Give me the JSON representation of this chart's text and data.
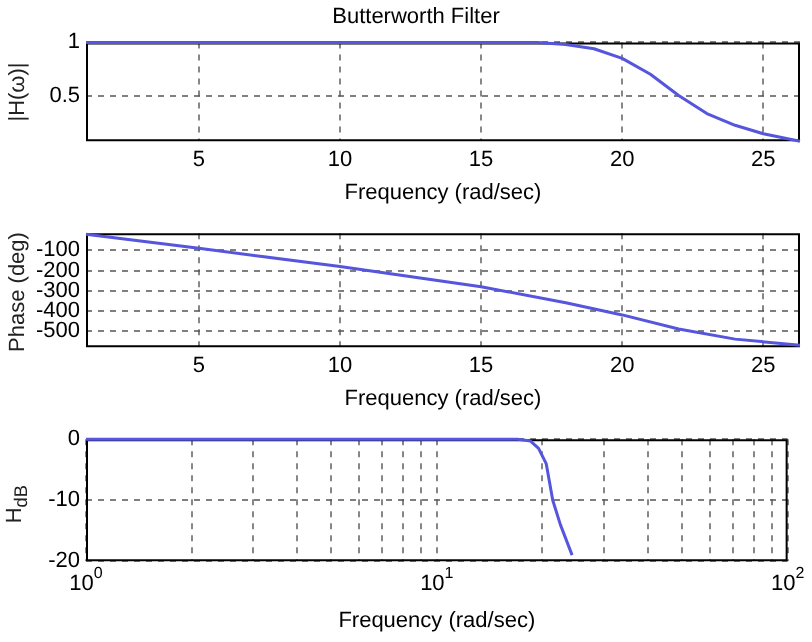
{
  "chart_data": [
    {
      "type": "line",
      "title": "Butterworth Filter",
      "xlabel": "Frequency (rad/sec)",
      "ylabel": "|H(ω)|",
      "x": [
        1,
        15,
        17,
        18,
        19,
        20,
        21,
        22,
        23,
        24,
        25,
        26.3
      ],
      "series": [
        {
          "color": "#5555dd",
          "values": [
            1,
            1,
            1,
            0.98,
            0.94,
            0.85,
            0.7,
            0.5,
            0.33,
            0.22,
            0.14,
            0.07
          ]
        }
      ],
      "xlim": [
        1,
        26.3
      ],
      "ylim": [
        0.07,
        1
      ],
      "xticks": [
        5,
        10,
        15,
        20,
        25
      ],
      "yticks": [
        0.5,
        1
      ],
      "grid": true
    },
    {
      "type": "line",
      "xlabel": "Frequency (rad/sec)",
      "ylabel": "Phase (deg)",
      "x": [
        1,
        5,
        10,
        15,
        18,
        20,
        22,
        24,
        26.3
      ],
      "series": [
        {
          "color": "#5555dd",
          "values": [
            -20,
            -90,
            -180,
            -280,
            -360,
            -420,
            -490,
            -540,
            -570
          ]
        }
      ],
      "xlim": [
        1,
        26.3
      ],
      "ylim": [
        -580,
        -15
      ],
      "xticks": [
        5,
        10,
        15,
        20,
        25
      ],
      "yticks": [
        -500,
        -400,
        -300,
        -200,
        -100
      ],
      "grid": true
    },
    {
      "type": "line",
      "xlabel": "Frequency (rad/sec)",
      "ylabel": "H$_{dB}$",
      "log": "x",
      "x": [
        1,
        17,
        18.5,
        19.5,
        20.5,
        21.4,
        22.5,
        24.3
      ],
      "series": [
        {
          "color": "#5555dd",
          "values": [
            0,
            0,
            -0.3,
            -1.5,
            -4,
            -10,
            -14,
            -19
          ]
        }
      ],
      "xlim": [
        1,
        100
      ],
      "ylim": [
        -20,
        0
      ],
      "xticks": [
        {
          "value": 1,
          "label": "10$^{0}$"
        },
        {
          "value": 2,
          "label": null
        },
        {
          "value": 3,
          "label": null
        },
        {
          "value": 4,
          "label": null
        },
        {
          "value": 5,
          "label": null
        },
        {
          "value": 6,
          "label": null
        },
        {
          "value": 7,
          "label": null
        },
        {
          "value": 8,
          "label": null
        },
        {
          "value": 9,
          "label": null
        },
        {
          "value": 10,
          "label": "10$^{1}$"
        },
        {
          "value": 20,
          "label": null
        },
        {
          "value": 30,
          "label": null
        },
        {
          "value": 40,
          "label": null
        },
        {
          "value": 50,
          "label": null
        },
        {
          "value": 60,
          "label": null
        },
        {
          "value": 70,
          "label": null
        },
        {
          "value": 80,
          "label": null
        },
        {
          "value": 90,
          "label": null
        },
        {
          "value": 100,
          "label": "10$^{2}$"
        }
      ],
      "yticks": [
        -20,
        -10,
        0
      ],
      "grid": true
    }
  ]
}
